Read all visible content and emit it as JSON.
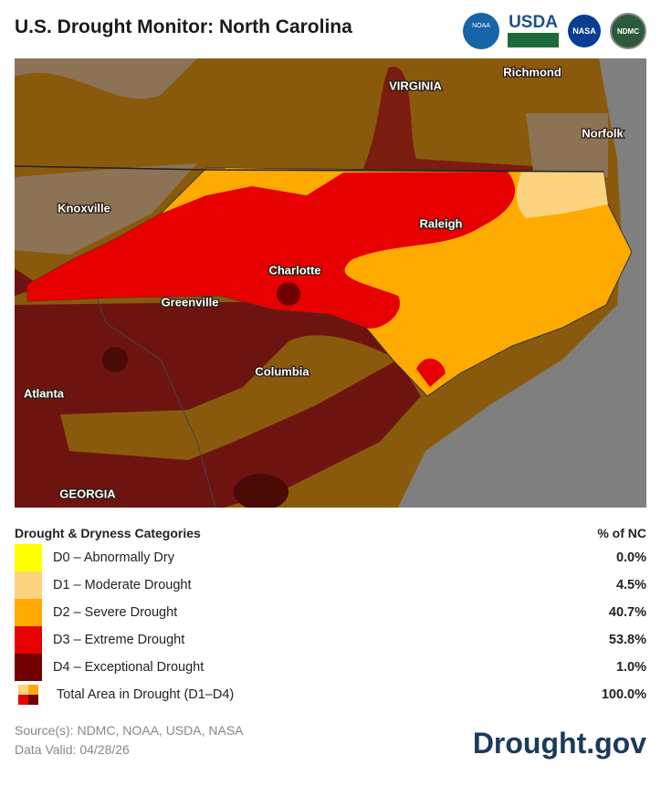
{
  "header": {
    "title": "U.S. Drought Monitor: North Carolina",
    "logos": [
      "NOAA",
      "USDA",
      "NASA",
      "NDMC"
    ]
  },
  "map": {
    "labels": [
      "Richmond",
      "VIRGINIA",
      "Norfolk",
      "Knoxville",
      "Raleigh",
      "Charlotte",
      "Greenville",
      "Columbia",
      "Atlanta",
      "GEORGIA"
    ]
  },
  "legend": {
    "heading": "Drought & Dryness Categories",
    "column": "% of NC",
    "rows": [
      {
        "label": "D0 – Abnormally Dry",
        "value": "0.0%",
        "color": "#ffff00"
      },
      {
        "label": "D1 – Moderate Drought",
        "value": "4.5%",
        "color": "#fcd37f"
      },
      {
        "label": "D2 – Severe Drought",
        "value": "40.7%",
        "color": "#ffaa00"
      },
      {
        "label": "D3 – Extreme Drought",
        "value": "53.8%",
        "color": "#e60000"
      },
      {
        "label": "D4 – Exceptional Drought",
        "value": "1.0%",
        "color": "#730000"
      }
    ],
    "total": {
      "label": "Total Area in Drought (D1–D4)",
      "value": "100.0%"
    }
  },
  "footer": {
    "source": "Source(s): NDMC, NOAA, USDA, NASA",
    "date": "Data Valid: 04/28/26",
    "brand": "Drought.gov"
  }
}
